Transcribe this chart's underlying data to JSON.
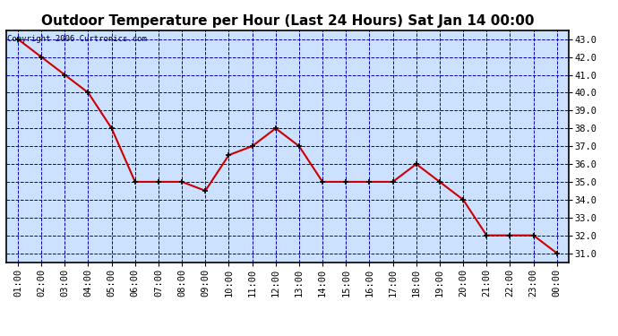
{
  "title": "Outdoor Temperature per Hour (Last 24 Hours) Sat Jan 14 00:00",
  "copyright": "Copyright 2006 Curtronics.com",
  "hours": [
    "01:00",
    "02:00",
    "03:00",
    "04:00",
    "05:00",
    "06:00",
    "07:00",
    "08:00",
    "09:00",
    "10:00",
    "11:00",
    "12:00",
    "13:00",
    "14:00",
    "15:00",
    "16:00",
    "17:00",
    "18:00",
    "19:00",
    "20:00",
    "21:00",
    "22:00",
    "23:00",
    "00:00"
  ],
  "temps": [
    43.0,
    42.0,
    41.0,
    40.0,
    38.0,
    35.0,
    35.0,
    35.0,
    34.5,
    36.5,
    37.0,
    38.0,
    37.0,
    35.0,
    35.0,
    35.0,
    35.0,
    36.0,
    35.0,
    34.0,
    32.0,
    32.0,
    32.0,
    31.0
  ],
  "line_color": "#cc0000",
  "marker_color": "#000000",
  "plot_bg_color": "#cce0ff",
  "outer_bg": "#ffffff",
  "grid_color": "#0000bb",
  "ylim": [
    30.5,
    43.5
  ],
  "yticks": [
    31.0,
    32.0,
    33.0,
    34.0,
    35.0,
    36.0,
    37.0,
    38.0,
    39.0,
    40.0,
    41.0,
    42.0,
    43.0
  ],
  "title_fontsize": 11,
  "copyright_fontsize": 6.5,
  "tick_fontsize": 7.5
}
